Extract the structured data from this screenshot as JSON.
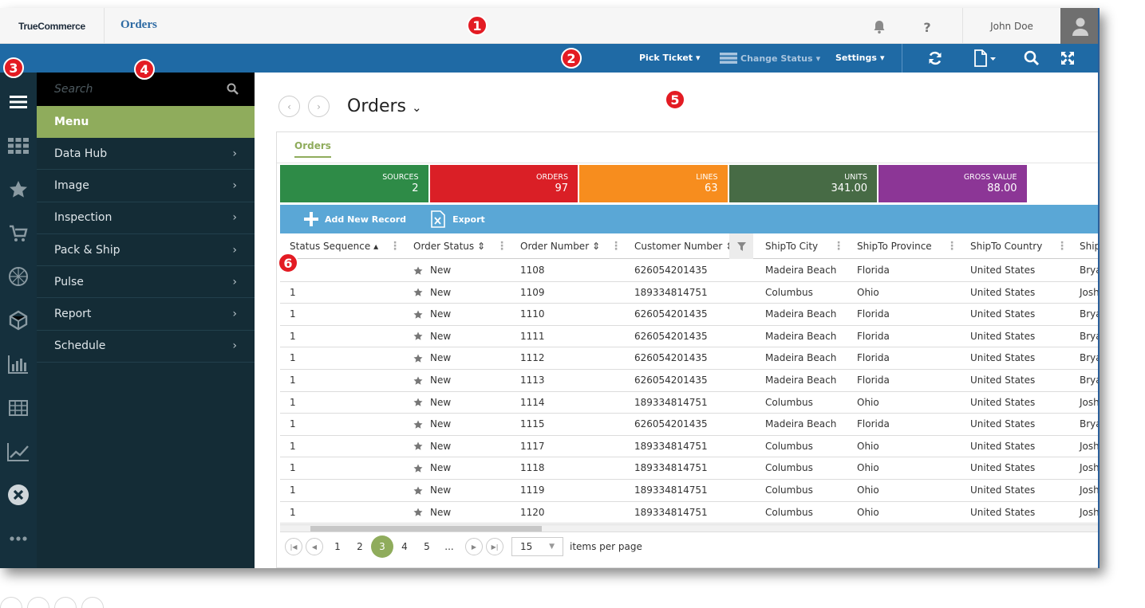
{
  "header": {
    "logo": "TrueCommerce",
    "title": "Orders",
    "user_name": "John Doe"
  },
  "toolbar": {
    "pick_ticket": "Pick Ticket",
    "change_status": "Change Status",
    "settings": "Settings"
  },
  "sidebar": {
    "search_placeholder": "Search",
    "menu_header": "Menu",
    "items": [
      {
        "label": "Data Hub"
      },
      {
        "label": "Image"
      },
      {
        "label": "Inspection"
      },
      {
        "label": "Pack & Ship"
      },
      {
        "label": "Pulse"
      },
      {
        "label": "Report"
      },
      {
        "label": "Schedule"
      }
    ]
  },
  "page": {
    "title": "Orders",
    "subtab": "Orders"
  },
  "stats": [
    {
      "label": "SOURCES",
      "value": "2",
      "color": "#2e8b47"
    },
    {
      "label": "ORDERS",
      "value": "97",
      "color": "#da1f26"
    },
    {
      "label": "LINES",
      "value": "63",
      "color": "#f78d1e"
    },
    {
      "label": "UNITS",
      "value": "341.00",
      "color": "#476b45"
    },
    {
      "label": "GROSS VALUE",
      "value": "88.00",
      "color": "#8c3696"
    }
  ],
  "actions": {
    "add_new": "Add New Record",
    "export": "Export"
  },
  "table": {
    "columns": [
      "Status Sequence",
      "Order Status",
      "Order Number",
      "Customer Number",
      "ShipTo City",
      "ShipTo Province",
      "ShipTo Country",
      "Ship"
    ],
    "rows": [
      {
        "seq": "",
        "status": "New",
        "order": "1108",
        "customer": "626054201435",
        "city": "Madeira Beach",
        "province": "Florida",
        "country": "United States",
        "ship": "Brya"
      },
      {
        "seq": "1",
        "status": "New",
        "order": "1109",
        "customer": "189334814751",
        "city": "Columbus",
        "province": "Ohio",
        "country": "United States",
        "ship": "Josh"
      },
      {
        "seq": "1",
        "status": "New",
        "order": "1110",
        "customer": "626054201435",
        "city": "Madeira Beach",
        "province": "Florida",
        "country": "United States",
        "ship": "Brya"
      },
      {
        "seq": "1",
        "status": "New",
        "order": "1111",
        "customer": "626054201435",
        "city": "Madeira Beach",
        "province": "Florida",
        "country": "United States",
        "ship": "Brya"
      },
      {
        "seq": "1",
        "status": "New",
        "order": "1112",
        "customer": "626054201435",
        "city": "Madeira Beach",
        "province": "Florida",
        "country": "United States",
        "ship": "Brya"
      },
      {
        "seq": "1",
        "status": "New",
        "order": "1113",
        "customer": "626054201435",
        "city": "Madeira Beach",
        "province": "Florida",
        "country": "United States",
        "ship": "Brya"
      },
      {
        "seq": "1",
        "status": "New",
        "order": "1114",
        "customer": "189334814751",
        "city": "Columbus",
        "province": "Ohio",
        "country": "United States",
        "ship": "Josh"
      },
      {
        "seq": "1",
        "status": "New",
        "order": "1115",
        "customer": "626054201435",
        "city": "Madeira Beach",
        "province": "Florida",
        "country": "United States",
        "ship": "Brya"
      },
      {
        "seq": "1",
        "status": "New",
        "order": "1117",
        "customer": "189334814751",
        "city": "Columbus",
        "province": "Ohio",
        "country": "United States",
        "ship": "Josh"
      },
      {
        "seq": "1",
        "status": "New",
        "order": "1118",
        "customer": "189334814751",
        "city": "Columbus",
        "province": "Ohio",
        "country": "United States",
        "ship": "Josh"
      },
      {
        "seq": "1",
        "status": "New",
        "order": "1119",
        "customer": "189334814751",
        "city": "Columbus",
        "province": "Ohio",
        "country": "United States",
        "ship": "Josh"
      },
      {
        "seq": "1",
        "status": "New",
        "order": "1120",
        "customer": "189334814751",
        "city": "Columbus",
        "province": "Ohio",
        "country": "United States",
        "ship": "Josh"
      }
    ]
  },
  "pager": {
    "pages": [
      "1",
      "2",
      "3",
      "4",
      "5",
      "..."
    ],
    "current": "3",
    "per_page": "15",
    "per_page_label": "items per page"
  },
  "callouts": [
    "1",
    "2",
    "3",
    "4",
    "5",
    "6"
  ]
}
